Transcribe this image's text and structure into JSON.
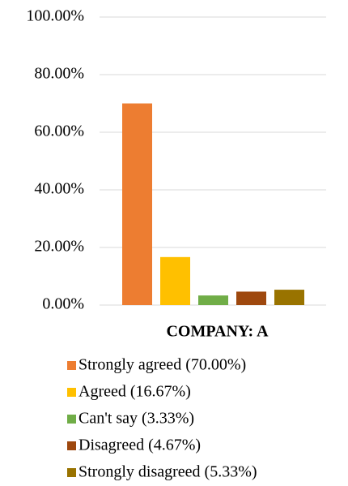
{
  "chart_data": {
    "type": "bar",
    "categories": [
      "COMPANY: A"
    ],
    "series": [
      {
        "name": "Strongly agreed (70.00%)",
        "color": "#ED7D31",
        "values": [
          70
        ]
      },
      {
        "name": "Agreed (16.67%)",
        "color": "#FFC000",
        "values": [
          16.67
        ]
      },
      {
        "name": "Can't say (3.33%)",
        "color": "#70AD47",
        "values": [
          3.33
        ]
      },
      {
        "name": "Disagreed (4.67%)",
        "color": "#9E480E",
        "values": [
          4.67
        ]
      },
      {
        "name": "Strongly disagreed (5.33%)",
        "color": "#997300",
        "values": [
          5.33
        ]
      }
    ],
    "ylim": [
      0,
      100
    ],
    "yticks": [
      {
        "value": 0,
        "label": "0.00%"
      },
      {
        "value": 20,
        "label": "20.00%"
      },
      {
        "value": 40,
        "label": "40.00%"
      },
      {
        "value": 60,
        "label": "60.00%"
      },
      {
        "value": 80,
        "label": "80.00%"
      },
      {
        "value": 100,
        "label": "100.00%"
      }
    ],
    "grid": true,
    "legend": "bottom"
  }
}
